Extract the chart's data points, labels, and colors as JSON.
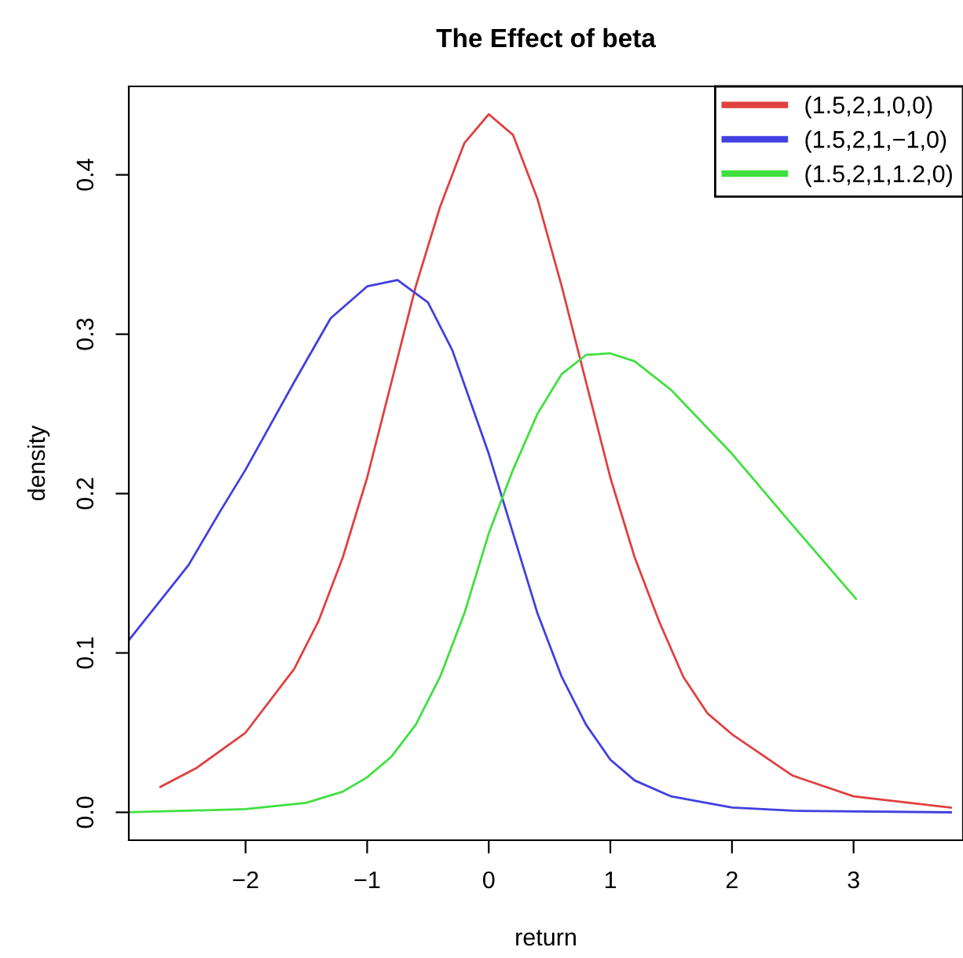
{
  "chart_data": {
    "type": "line",
    "title": "The Effect of beta",
    "xlabel": "return",
    "ylabel": "density",
    "xlim": [
      -2.96,
      3.9
    ],
    "ylim": [
      -0.0175,
      0.4555
    ],
    "xticks": [
      {
        "value": -2,
        "label": "−2"
      },
      {
        "value": -1,
        "label": "−1"
      },
      0,
      1,
      2,
      3
    ],
    "yticks": [
      {
        "value": 0,
        "label": "0.0"
      },
      0.1,
      0.2,
      0.3,
      0.4
    ],
    "grid": false,
    "legend": "top right",
    "marker": "none",
    "line_style": "solid",
    "series": [
      {
        "name": "(1.5,2,1,0,0)",
        "color": "#e04040",
        "x": [
          -2.7,
          -2.4,
          -2,
          -1.6,
          -1.4,
          -1.2,
          -1,
          -0.8,
          -0.6,
          -0.4,
          -0.2,
          0,
          0.2,
          0.4,
          0.6,
          0.8,
          1,
          1.2,
          1.4,
          1.6,
          1.8,
          2,
          2.5,
          3,
          3.8
        ],
        "values": [
          0.016,
          0.028,
          0.05,
          0.09,
          0.12,
          0.16,
          0.21,
          0.27,
          0.33,
          0.38,
          0.42,
          0.438,
          0.425,
          0.385,
          0.33,
          0.27,
          0.21,
          0.16,
          0.12,
          0.085,
          0.062,
          0.049,
          0.023,
          0.01,
          0.003
        ]
      },
      {
        "name": "(1.5,2,1,−1,0)",
        "color": "#4040e0",
        "x": [
          -2.96,
          -2.47,
          -2.2,
          -2,
          -1.6,
          -1.3,
          -1,
          -0.75,
          -0.5,
          -0.3,
          0,
          0.2,
          0.4,
          0.6,
          0.8,
          1,
          1.2,
          1.5,
          2,
          2.5,
          3.8
        ],
        "values": [
          0.108,
          0.155,
          0.19,
          0.215,
          0.27,
          0.31,
          0.33,
          0.334,
          0.32,
          0.29,
          0.225,
          0.175,
          0.125,
          0.085,
          0.055,
          0.033,
          0.02,
          0.01,
          0.003,
          0.001,
          0.0
        ]
      },
      {
        "name": "(1.5,2,1,1.2,0)",
        "color": "#40e040",
        "x": [
          -2.96,
          -2,
          -1.5,
          -1.2,
          -1,
          -0.8,
          -0.6,
          -0.4,
          -0.2,
          0,
          0.2,
          0.4,
          0.6,
          0.8,
          1,
          1.2,
          1.5,
          2,
          2.5,
          3.02
        ],
        "values": [
          0.0,
          0.002,
          0.006,
          0.013,
          0.022,
          0.035,
          0.055,
          0.085,
          0.125,
          0.175,
          0.215,
          0.25,
          0.275,
          0.287,
          0.288,
          0.283,
          0.265,
          0.225,
          0.18,
          0.134
        ]
      }
    ]
  }
}
